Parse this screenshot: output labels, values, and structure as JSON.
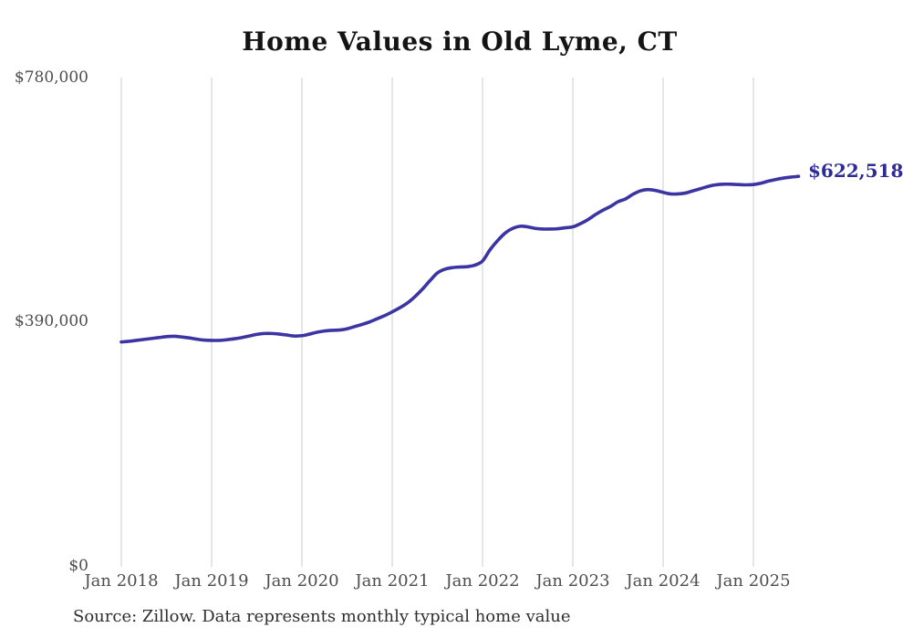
{
  "title": "Home Values in Old Lyme, CT",
  "source_note": "Source: Zillow. Data represents monthly typical home value",
  "colors": {
    "line": "#3b34a3",
    "end_label_text": "#2e2b99",
    "grid": "#cccccc",
    "axis_text": "#4d4d4d",
    "title_text": "#141414",
    "source_text": "#2e2e2e",
    "background": "#ffffff"
  },
  "chart_data": {
    "type": "line",
    "title": "Home Values in Old Lyme, CT",
    "xlabel": "",
    "ylabel": "",
    "ylim": [
      0,
      780000
    ],
    "grid": "vertical-only",
    "legend": "none",
    "x_interval": "monthly",
    "x_start": "2018-01",
    "x_end": "2025-07",
    "x_tick_labels": [
      "Jan 2018",
      "Jan 2019",
      "Jan 2020",
      "Jan 2021",
      "Jan 2022",
      "Jan 2023",
      "Jan 2024",
      "Jan 2025"
    ],
    "y_tick_labels": [
      "$0",
      "$390,000",
      "$780,000"
    ],
    "y_tick_values": [
      0,
      390000,
      780000
    ],
    "last_point_label": "$622,518",
    "last_point_value": 622518,
    "series": [
      {
        "name": "Monthly typical home value",
        "monthly_values": [
          358500,
          359500,
          361000,
          362500,
          364000,
          365500,
          367000,
          367500,
          366500,
          365000,
          363000,
          361500,
          361000,
          361000,
          362000,
          363500,
          365500,
          368000,
          370500,
          372000,
          372000,
          371000,
          369500,
          368000,
          368500,
          371000,
          374000,
          376000,
          377000,
          377500,
          379500,
          383000,
          386500,
          390500,
          395500,
          400500,
          406500,
          413000,
          420500,
          430500,
          442500,
          456000,
          468500,
          474500,
          477000,
          478000,
          478500,
          481000,
          487500,
          505500,
          520000,
          532000,
          539500,
          543000,
          542000,
          539500,
          538500,
          538500,
          539000,
          540500,
          542000,
          547000,
          553500,
          561500,
          568500,
          574500,
          582000,
          586500,
          594000,
          599500,
          601500,
          600000,
          597000,
          594500,
          594500,
          596000,
          599500,
          603000,
          606500,
          609000,
          610000,
          610000,
          609500,
          609000,
          609500,
          611500,
          615000,
          617500,
          619800,
          621300,
          622518
        ]
      }
    ]
  }
}
